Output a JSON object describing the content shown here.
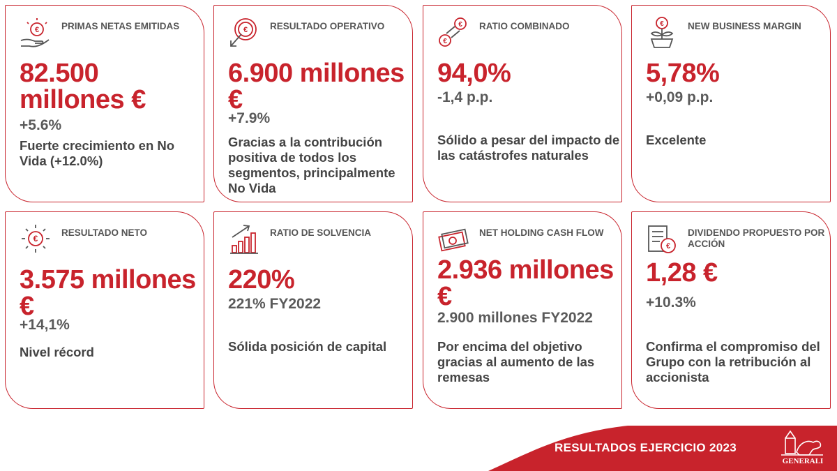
{
  "colors": {
    "accent": "#c8232c",
    "text_gray": "#5a5a5a"
  },
  "cards": [
    {
      "icon": "euro-hand-icon",
      "label": "PRIMAS NETAS EMITIDAS",
      "value": "82.500 millones €",
      "change": "+5.6%",
      "description": "Fuerte crecimiento en No Vida (+12.0%)"
    },
    {
      "icon": "euro-target-arrow-icon",
      "label": "RESULTADO OPERATIVO",
      "value": "6.900 millones €",
      "change": "+7.9%",
      "description": "Gracias a la contribución positiva de todos los segmentos, principalmente No Vida"
    },
    {
      "icon": "euro-exchange-icon",
      "label": "RATIO COMBINADO",
      "value": "94,0%",
      "change": "-1,4 p.p.",
      "description": "Sólido a pesar del impacto de las catástrofes naturales"
    },
    {
      "icon": "euro-plant-icon",
      "label": "NEW BUSINESS MARGIN",
      "value": "5,78%",
      "change": "+0,09 p.p.",
      "description": "Excelente"
    },
    {
      "icon": "euro-sun-icon",
      "label": "RESULTADO NETO",
      "value": "3.575 millones €",
      "change": "+14,1%",
      "description": "Nivel récord"
    },
    {
      "icon": "bar-growth-icon",
      "label": "RATIO DE SOLVENCIA",
      "value": "220%",
      "change": "221% FY2022",
      "description": "Sólida posición de capital"
    },
    {
      "icon": "banknotes-icon",
      "label": "NET HOLDING CASH FLOW",
      "value": "2.936 millones €",
      "change": "2.900 millones FY2022",
      "description": "Por encima del objetivo gracias al aumento de las remesas"
    },
    {
      "icon": "euro-document-icon",
      "label": "DIVIDENDO PROPUESTO POR ACCIÓN",
      "value": "1,28 €",
      "change": "+10.3%",
      "description": "Confirma el compromiso del Grupo con la retribución al accionista"
    }
  ],
  "footer": {
    "title": "RESULTADOS EJERCICIO 2023",
    "brand": "GENERALI",
    "logo_icon": "lion-logo-icon"
  }
}
